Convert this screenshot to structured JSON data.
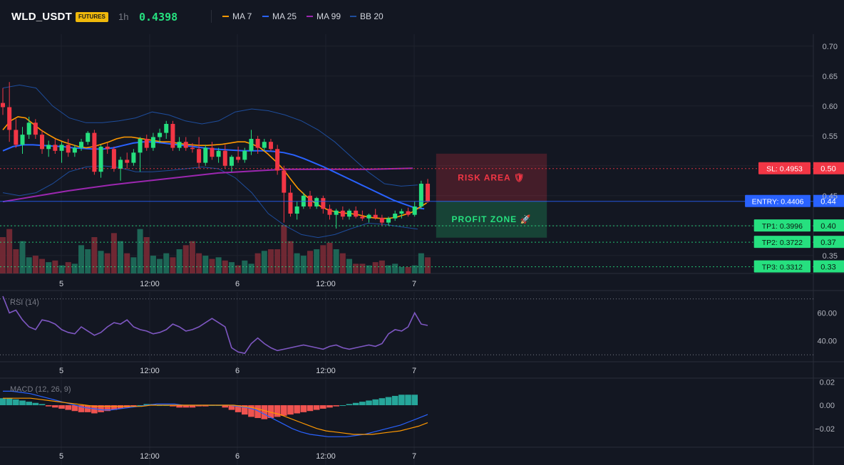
{
  "header": {
    "symbol": "WLD_USDT",
    "badge": "FUTURES",
    "timeframe": "1h",
    "last_price": "0.4398",
    "indicators": [
      {
        "label": "MA 7",
        "color": "#ff9800"
      },
      {
        "label": "MA 25",
        "color": "#2962ff"
      },
      {
        "label": "MA 99",
        "color": "#9c27b0"
      },
      {
        "label": "BB 20",
        "color": "#1e4d9c"
      }
    ]
  },
  "colors": {
    "up": "#26e07f",
    "down": "#f23645",
    "vol_up": "#1f6f5c",
    "vol_down": "#7a2a35",
    "bg": "#131722",
    "grid": "#1e222d"
  },
  "chart_data": {
    "type": "candlestick",
    "price_axis": {
      "ylim": [
        0.32,
        0.72
      ],
      "ticks": [
        "0.70",
        "0.65",
        "0.60",
        "0.55",
        "0.45",
        "0.35"
      ]
    },
    "time_axis": [
      "5",
      "12:00",
      "6",
      "12:00",
      "7"
    ],
    "candles": [
      [
        0.605,
        0.63,
        0.585,
        0.598
      ],
      [
        0.598,
        0.64,
        0.54,
        0.56
      ],
      [
        0.56,
        0.578,
        0.53,
        0.535
      ],
      [
        0.535,
        0.565,
        0.52,
        0.552
      ],
      [
        0.552,
        0.582,
        0.545,
        0.572
      ],
      [
        0.572,
        0.578,
        0.545,
        0.552
      ],
      [
        0.552,
        0.56,
        0.52,
        0.528
      ],
      [
        0.528,
        0.542,
        0.515,
        0.535
      ],
      [
        0.535,
        0.545,
        0.52,
        0.525
      ],
      [
        0.525,
        0.54,
        0.505,
        0.535
      ],
      [
        0.535,
        0.545,
        0.515,
        0.522
      ],
      [
        0.522,
        0.535,
        0.515,
        0.53
      ],
      [
        0.53,
        0.545,
        0.525,
        0.54
      ],
      [
        0.54,
        0.558,
        0.535,
        0.555
      ],
      [
        0.555,
        0.56,
        0.485,
        0.49
      ],
      [
        0.49,
        0.535,
        0.48,
        0.532
      ],
      [
        0.532,
        0.538,
        0.52,
        0.528
      ],
      [
        0.528,
        0.532,
        0.49,
        0.495
      ],
      [
        0.495,
        0.515,
        0.475,
        0.51
      ],
      [
        0.51,
        0.522,
        0.495,
        0.505
      ],
      [
        0.505,
        0.528,
        0.5,
        0.522
      ],
      [
        0.522,
        0.548,
        0.49,
        0.545
      ],
      [
        0.545,
        0.552,
        0.525,
        0.53
      ],
      [
        0.53,
        0.555,
        0.525,
        0.548
      ],
      [
        0.548,
        0.562,
        0.538,
        0.555
      ],
      [
        0.555,
        0.575,
        0.545,
        0.57
      ],
      [
        0.57,
        0.575,
        0.525,
        0.53
      ],
      [
        0.53,
        0.548,
        0.525,
        0.54
      ],
      [
        0.54,
        0.548,
        0.525,
        0.53
      ],
      [
        0.53,
        0.538,
        0.522,
        0.528
      ],
      [
        0.528,
        0.548,
        0.495,
        0.505
      ],
      [
        0.505,
        0.535,
        0.5,
        0.53
      ],
      [
        0.53,
        0.54,
        0.51,
        0.515
      ],
      [
        0.515,
        0.53,
        0.505,
        0.525
      ],
      [
        0.525,
        0.535,
        0.495,
        0.5
      ],
      [
        0.5,
        0.518,
        0.49,
        0.515
      ],
      [
        0.515,
        0.532,
        0.505,
        0.51
      ],
      [
        0.51,
        0.53,
        0.505,
        0.525
      ],
      [
        0.525,
        0.56,
        0.518,
        0.545
      ],
      [
        0.545,
        0.55,
        0.52,
        0.53
      ],
      [
        0.53,
        0.545,
        0.525,
        0.54
      ],
      [
        0.54,
        0.545,
        0.525,
        0.528
      ],
      [
        0.528,
        0.535,
        0.485,
        0.492
      ],
      [
        0.492,
        0.5,
        0.405,
        0.455
      ],
      [
        0.455,
        0.468,
        0.415,
        0.42
      ],
      [
        0.42,
        0.44,
        0.41,
        0.432
      ],
      [
        0.432,
        0.455,
        0.428,
        0.45
      ],
      [
        0.45,
        0.458,
        0.428,
        0.432
      ],
      [
        0.432,
        0.448,
        0.428,
        0.446
      ],
      [
        0.446,
        0.45,
        0.42,
        0.428
      ],
      [
        0.428,
        0.435,
        0.41,
        0.418
      ],
      [
        0.418,
        0.428,
        0.395,
        0.425
      ],
      [
        0.425,
        0.432,
        0.41,
        0.415
      ],
      [
        0.415,
        0.428,
        0.41,
        0.425
      ],
      [
        0.425,
        0.432,
        0.412,
        0.415
      ],
      [
        0.415,
        0.425,
        0.408,
        0.412
      ],
      [
        0.412,
        0.42,
        0.405,
        0.418
      ],
      [
        0.418,
        0.428,
        0.41,
        0.413
      ],
      [
        0.413,
        0.418,
        0.4,
        0.405
      ],
      [
        0.405,
        0.415,
        0.4,
        0.412
      ],
      [
        0.412,
        0.425,
        0.408,
        0.42
      ],
      [
        0.42,
        0.428,
        0.412,
        0.424
      ],
      [
        0.424,
        0.43,
        0.415,
        0.418
      ],
      [
        0.418,
        0.44,
        0.415,
        0.432
      ],
      [
        0.432,
        0.475,
        0.428,
        0.47
      ],
      [
        0.47,
        0.478,
        0.438,
        0.44
      ]
    ],
    "volume": [
      45,
      55,
      30,
      40,
      20,
      22,
      18,
      14,
      16,
      10,
      14,
      12,
      35,
      30,
      45,
      28,
      25,
      50,
      40,
      25,
      20,
      55,
      45,
      22,
      18,
      25,
      20,
      30,
      35,
      40,
      25,
      22,
      18,
      20,
      16,
      14,
      10,
      16,
      12,
      25,
      28,
      30,
      30,
      60,
      40,
      25,
      22,
      28,
      30,
      35,
      38,
      30,
      25,
      18,
      12,
      12,
      10,
      14,
      16,
      10,
      12,
      8,
      8,
      10,
      25,
      20
    ],
    "ma_series": [
      {
        "label": "MA 7",
        "color": "#ff9800",
        "values": [
          0.56,
          0.575,
          0.582,
          0.58,
          0.57,
          0.56,
          0.552,
          0.545,
          0.54,
          0.536,
          0.532,
          0.53,
          0.532,
          0.536,
          0.54,
          0.545,
          0.548,
          0.548,
          0.546,
          0.544,
          0.542,
          0.54,
          0.54,
          0.538,
          0.536,
          0.535,
          0.534,
          0.534,
          0.535,
          0.536,
          0.538,
          0.54,
          0.54,
          0.536,
          0.53,
          0.52,
          0.508,
          0.495,
          0.478,
          0.462,
          0.45,
          0.44,
          0.432,
          0.426,
          0.423,
          0.421,
          0.42,
          0.418,
          0.415,
          0.413,
          0.412,
          0.412,
          0.414,
          0.418,
          0.422,
          0.43,
          0.438
        ]
      },
      {
        "label": "MA 25",
        "color": "#2962ff",
        "values": [
          0.525,
          0.532,
          0.535,
          0.535,
          0.534,
          0.533,
          0.532,
          0.53,
          0.529,
          0.528,
          0.528,
          0.53,
          0.534,
          0.538,
          0.54,
          0.54,
          0.538,
          0.536,
          0.534,
          0.532,
          0.53,
          0.528,
          0.527,
          0.526,
          0.525,
          0.525,
          0.525,
          0.524,
          0.522,
          0.518,
          0.512,
          0.505,
          0.498,
          0.49,
          0.482,
          0.474,
          0.466,
          0.458,
          0.45,
          0.442,
          0.436,
          0.43,
          0.428
        ]
      },
      {
        "label": "MA 99",
        "color": "#9c27b0",
        "values": [
          0.44,
          0.446,
          0.452,
          0.458,
          0.463,
          0.468,
          0.472,
          0.476,
          0.48,
          0.484,
          0.488,
          0.49,
          0.492,
          0.494,
          0.494,
          0.494,
          0.494,
          0.494,
          0.495,
          0.496
        ]
      },
      {
        "label": "BB 20 upper",
        "color": "#1e4d9c",
        "values": [
          0.63,
          0.635,
          0.63,
          0.6,
          0.58,
          0.572,
          0.572,
          0.575,
          0.58,
          0.59,
          0.585,
          0.575,
          0.57,
          0.575,
          0.59,
          0.595,
          0.592,
          0.585,
          0.575,
          0.56,
          0.54,
          0.515,
          0.49,
          0.47,
          0.466,
          0.468
        ]
      },
      {
        "label": "BB 20 lower",
        "color": "#1e4d9c",
        "values": [
          0.455,
          0.45,
          0.455,
          0.47,
          0.49,
          0.498,
          0.5,
          0.497,
          0.49,
          0.49,
          0.492,
          0.495,
          0.498,
          0.495,
          0.48,
          0.455,
          0.42,
          0.4,
          0.385,
          0.38,
          0.385,
          0.395,
          0.404,
          0.402,
          0.398,
          0.394
        ]
      }
    ],
    "levels": [
      {
        "label": "SL: 0.4953",
        "value": 0.4953,
        "tick": "0.50",
        "color": "#f23645"
      },
      {
        "label": "ENTRY: 0.4406",
        "value": 0.4406,
        "tick": "0.44",
        "color": "#2962ff"
      },
      {
        "label": "TP1: 0.3996",
        "value": 0.3996,
        "tick": "0.40",
        "color": "#26e07f"
      },
      {
        "label": "TP2: 0.3722",
        "value": 0.3722,
        "tick": "0.37",
        "color": "#26e07f"
      },
      {
        "label": "TP3: 0.3312",
        "value": 0.3312,
        "tick": "0.33",
        "color": "#26e07f"
      }
    ],
    "zones": [
      {
        "label": "RISK AREA 🛡",
        "from": 0.4406,
        "to": 0.52,
        "color": "#f23645"
      },
      {
        "label": "PROFIT ZONE 🚀",
        "from": 0.38,
        "to": 0.4406,
        "color": "#26e07f"
      }
    ],
    "rsi": {
      "label": "RSI (14)",
      "ticks": [
        "60.00",
        "40.00"
      ],
      "ylim": [
        25,
        75
      ],
      "levels": [
        70,
        30
      ],
      "color": "#7e57c2",
      "values": [
        72,
        60,
        62,
        55,
        50,
        48,
        55,
        54,
        52,
        48,
        46,
        45,
        50,
        47,
        44,
        46,
        50,
        53,
        52,
        55,
        50,
        48,
        47,
        45,
        46,
        48,
        52,
        50,
        47,
        48,
        50,
        53,
        56,
        53,
        50,
        35,
        32,
        31,
        38,
        42,
        38,
        35,
        33,
        34,
        35,
        36,
        37,
        36,
        35,
        34,
        36,
        37,
        35,
        34,
        35,
        36,
        37,
        36,
        38,
        45,
        48,
        47,
        50,
        60,
        52,
        51
      ]
    },
    "macd": {
      "label": "MACD (12, 26, 9)",
      "ticks": [
        "0.02",
        "0.00",
        "−0.02"
      ],
      "ylim": [
        -0.036,
        0.022
      ],
      "macd_color": "#2962ff",
      "signal_color": "#ff9800",
      "hist_up": "#26a69a",
      "hist_down": "#ef5350",
      "histogram": [
        0.006,
        0.006,
        0.005,
        0.004,
        0.003,
        0.002,
        0.001,
        -0.001,
        -0.002,
        -0.003,
        -0.004,
        -0.005,
        -0.006,
        -0.006,
        -0.007,
        -0.006,
        -0.005,
        -0.004,
        -0.003,
        -0.002,
        -0.001,
        0.0,
        0.001,
        0.001,
        0.0,
        0.0,
        -0.001,
        -0.002,
        -0.002,
        -0.002,
        -0.001,
        -0.001,
        0.0,
        0.0,
        -0.002,
        -0.004,
        -0.006,
        -0.008,
        -0.01,
        -0.011,
        -0.012,
        -0.011,
        -0.01,
        -0.009,
        -0.008,
        -0.007,
        -0.006,
        -0.005,
        -0.004,
        -0.003,
        -0.002,
        -0.001,
        0.0,
        0.001,
        0.002,
        0.003,
        0.004,
        0.005,
        0.006,
        0.007,
        0.008,
        0.009,
        0.009,
        0.009
      ],
      "macd_line": [
        0.012,
        0.012,
        0.011,
        0.01,
        0.008,
        0.006,
        0.004,
        0.002,
        0.0,
        -0.002,
        -0.003,
        -0.004,
        -0.004,
        -0.003,
        -0.002,
        -0.001,
        0.0,
        0.001,
        0.001,
        0.001,
        0.0,
        0.0,
        0.0,
        0.0,
        0.0,
        0.0,
        -0.001,
        -0.002,
        -0.004,
        -0.008,
        -0.012,
        -0.016,
        -0.02,
        -0.023,
        -0.025,
        -0.026,
        -0.027,
        -0.027,
        -0.027,
        -0.026,
        -0.025,
        -0.023,
        -0.021,
        -0.019,
        -0.017,
        -0.014,
        -0.011,
        -0.008
      ],
      "signal_line": [
        0.006,
        0.006,
        0.006,
        0.006,
        0.005,
        0.004,
        0.003,
        0.002,
        0.001,
        0.0,
        -0.001,
        -0.001,
        -0.001,
        -0.001,
        -0.001,
        -0.001,
        0.0,
        0.0,
        0.0,
        0.0,
        0.0,
        0.0,
        0.0,
        0.0,
        0.0,
        0.0,
        -0.001,
        -0.002,
        -0.004,
        -0.006,
        -0.008,
        -0.011,
        -0.014,
        -0.017,
        -0.02,
        -0.022,
        -0.023,
        -0.024,
        -0.025,
        -0.025,
        -0.025,
        -0.024,
        -0.023,
        -0.022,
        -0.02,
        -0.018,
        -0.015
      ]
    }
  }
}
